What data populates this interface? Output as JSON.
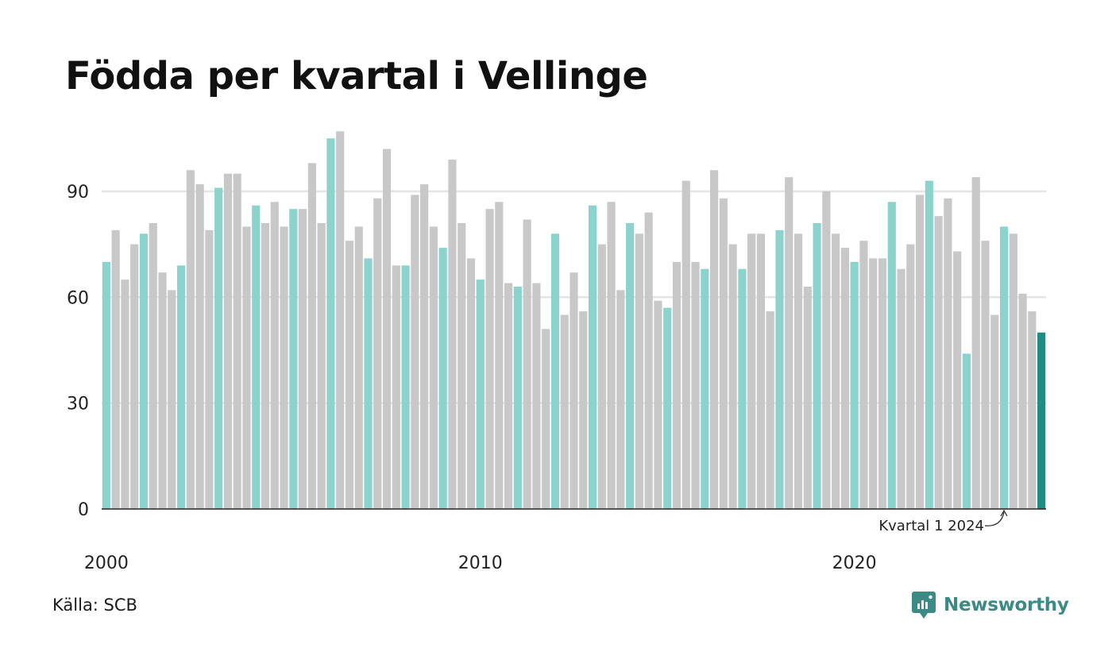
{
  "chart_data": {
    "type": "bar",
    "title": "Födda per kvartal i Vellinge",
    "xlabel": "",
    "ylabel": "",
    "ylim": [
      0,
      107
    ],
    "yticks": [
      0,
      30,
      60,
      90
    ],
    "xticks": [
      "2000",
      "2010",
      "2020"
    ],
    "grid": true,
    "start_year": 2000,
    "values": [
      70,
      79,
      65,
      75,
      78,
      81,
      67,
      62,
      69,
      96,
      92,
      79,
      91,
      95,
      95,
      80,
      86,
      81,
      87,
      80,
      85,
      85,
      98,
      81,
      105,
      107,
      76,
      80,
      71,
      88,
      102,
      69,
      69,
      89,
      92,
      80,
      74,
      99,
      81,
      71,
      65,
      85,
      87,
      64,
      63,
      82,
      64,
      51,
      78,
      55,
      67,
      56,
      86,
      75,
      87,
      62,
      81,
      78,
      84,
      59,
      57,
      70,
      93,
      70,
      68,
      96,
      88,
      75,
      68,
      78,
      78,
      56,
      79,
      94,
      78,
      63,
      81,
      90,
      78,
      74,
      70,
      76,
      71,
      71,
      87,
      68,
      75,
      89,
      93,
      83,
      88,
      73,
      44,
      94,
      76,
      55,
      80,
      78,
      61,
      56,
      50
    ],
    "colors": {
      "q1": "#8dd3cd",
      "other": "#c8c8c8",
      "latest": "#1e8d85",
      "grid": "#e4e4e4",
      "axis": "#222222"
    },
    "annotation": {
      "text": "Kvartal 1 2024",
      "target_index": 96
    }
  },
  "footer": {
    "source": "Källa: SCB",
    "brand": "Newsworthy",
    "brand_icon": "newsworthy-logo-icon",
    "brand_color": "#3a8a86"
  }
}
